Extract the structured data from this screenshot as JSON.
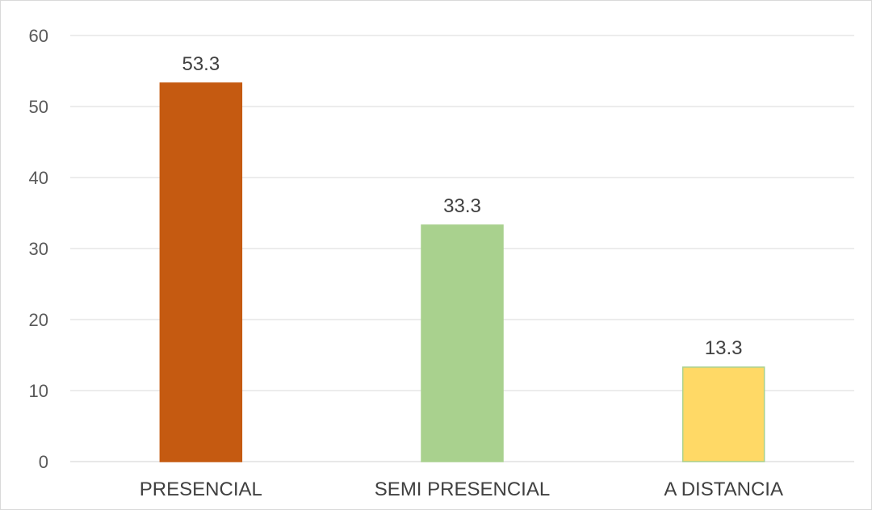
{
  "chart_data": {
    "type": "bar",
    "title": "",
    "xlabel": "",
    "ylabel": "",
    "categories": [
      "PRESENCIAL",
      "SEMI PRESENCIAL",
      "A DISTANCIA"
    ],
    "values": [
      53.3,
      33.3,
      13.3
    ],
    "data_labels": [
      "53.3",
      "33.3",
      "13.3"
    ],
    "bar_colors": [
      "#c55a11",
      "#a9d18e",
      "#ffd966"
    ],
    "bar_edge_colors": [
      "#c55a11",
      "#a9d18e",
      "#a9d18e"
    ],
    "ylim": [
      0,
      60
    ],
    "yticks": [
      0,
      10,
      20,
      30,
      40,
      50,
      60
    ],
    "ytick_labels": [
      "0",
      "10",
      "20",
      "30",
      "40",
      "50",
      "60"
    ],
    "grid": true,
    "gridline_color": "#d9d9d9",
    "legend": "none"
  }
}
